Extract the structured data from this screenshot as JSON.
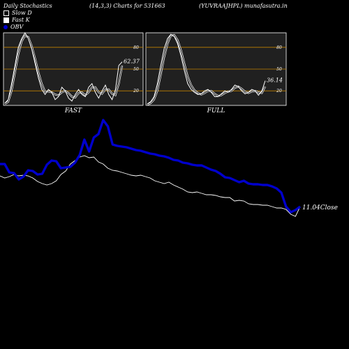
{
  "header": {
    "left": "Daily Stochastics",
    "mid": "(14,3,3) Charts for 531663",
    "right": "(YUVRAAJHPL) munafasutra.in"
  },
  "legend": {
    "items": [
      {
        "label": "Slow  D",
        "color": "#ffffff",
        "fill": "#000000"
      },
      {
        "label": "Fast K",
        "color": "#ffffff",
        "fill": "#ffffff"
      },
      {
        "label": "OBV",
        "color": "#0000cc",
        "fill": "#0000cc"
      }
    ]
  },
  "colors": {
    "panel_bg": "#202020",
    "ref_lines": "#c08000",
    "obv": "#0000cc",
    "close": "#ffffff"
  },
  "chart_data": [
    {
      "type": "line",
      "title": "FAST",
      "yticks": [
        20,
        50,
        80
      ],
      "ylim": [
        0,
        100
      ],
      "ref_lines": [
        20,
        50,
        80
      ],
      "last_value_label": "62.37",
      "series": [
        {
          "name": "Fast K",
          "values": [
            3,
            8,
            30,
            55,
            80,
            92,
            100,
            92,
            78,
            58,
            38,
            22,
            15,
            22,
            18,
            8,
            12,
            25,
            20,
            10,
            6,
            15,
            22,
            15,
            12,
            25,
            30,
            18,
            10,
            20,
            28,
            15,
            8,
            22,
            55,
            60
          ]
        },
        {
          "name": "Slow  D",
          "values": [
            2,
            5,
            20,
            45,
            70,
            88,
            96,
            94,
            82,
            65,
            46,
            30,
            19,
            19,
            18,
            15,
            14,
            18,
            20,
            17,
            12,
            11,
            17,
            18,
            14,
            18,
            25,
            25,
            18,
            16,
            22,
            22,
            16,
            14,
            30,
            55
          ]
        }
      ]
    },
    {
      "type": "line",
      "title": "FULL",
      "yticks": [
        20,
        50,
        80
      ],
      "ylim": [
        0,
        100
      ],
      "ref_lines": [
        20,
        50,
        80
      ],
      "last_value_label": "36.14",
      "series": [
        {
          "name": "Fast K",
          "values": [
            2,
            5,
            12,
            30,
            55,
            78,
            92,
            98,
            95,
            85,
            68,
            48,
            30,
            22,
            18,
            15,
            16,
            20,
            22,
            18,
            12,
            12,
            16,
            20,
            18,
            22,
            28,
            26,
            20,
            16,
            18,
            22,
            20,
            14,
            20,
            34
          ]
        },
        {
          "name": "Slow  D",
          "values": [
            1,
            3,
            8,
            20,
            42,
            66,
            85,
            96,
            97,
            90,
            76,
            58,
            40,
            28,
            21,
            17,
            15,
            17,
            20,
            20,
            16,
            13,
            14,
            17,
            19,
            20,
            24,
            26,
            23,
            19,
            17,
            19,
            20,
            18,
            17,
            26
          ]
        }
      ]
    },
    {
      "type": "line",
      "title": "",
      "close_label": "11.04",
      "close_suffix": "Close",
      "series": [
        {
          "name": "OBV",
          "values": [
            50,
            50,
            38,
            37,
            28,
            32,
            41,
            40,
            35,
            36,
            49,
            55,
            54,
            44,
            45,
            46,
            52,
            63,
            85,
            68,
            88,
            93,
            113,
            104,
            78,
            76,
            75,
            74,
            72,
            70,
            69,
            67,
            65,
            64,
            62,
            61,
            59,
            56,
            55,
            52,
            51,
            49,
            48,
            48,
            45,
            42,
            40,
            36,
            31,
            30,
            27,
            24,
            26,
            22,
            21,
            21,
            20,
            20,
            18,
            15,
            9,
            -11,
            -19,
            -16,
            -11
          ]
        },
        {
          "name": "Close",
          "values": [
            33,
            30,
            32,
            35,
            33,
            34,
            33,
            30,
            25,
            22,
            20,
            22,
            26,
            35,
            40,
            50,
            55,
            60,
            62,
            59,
            60,
            53,
            50,
            44,
            41,
            40,
            38,
            36,
            34,
            33,
            34,
            32,
            30,
            26,
            24,
            22,
            24,
            20,
            17,
            14,
            10,
            9,
            10,
            8,
            6,
            6,
            5,
            3,
            2,
            2,
            -3,
            -2,
            -3,
            -7,
            -8,
            -8,
            -9,
            -9,
            -11,
            -13,
            -13,
            -15,
            -22,
            -25,
            -11
          ]
        }
      ]
    }
  ]
}
